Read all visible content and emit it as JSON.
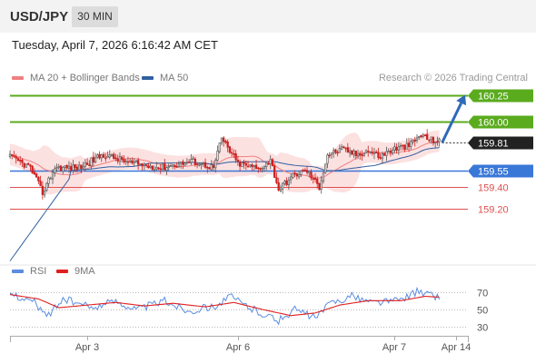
{
  "header": {
    "pair": "USD/JPY",
    "interval": "30 MIN"
  },
  "timestamp": "Tuesday, April 7, 2026 6:16:42 AM CET",
  "legend": {
    "ma20_label": "MA 20 + Bollinger Bands",
    "ma50_label": "MA 50",
    "rsi_label": "RSI",
    "rsi_ma_label": "9MA"
  },
  "credit": "Research © 2026 Trading Central",
  "colors": {
    "bull": "#e8e8e8",
    "bear": "#cc2020",
    "ma20": "#f08080",
    "bollinger_fill": "#fbdcdc",
    "ma50": "#3060a0",
    "resistance": "#5aab1e",
    "support_blue": "#3a78d8",
    "support_red": "#e05050",
    "current": "#222222",
    "rsi": "#5b8de0",
    "rsi_ma": "#e02020",
    "arrow": "#2e6ab8"
  },
  "chart_data": [
    {
      "type": "candlestick",
      "x_ticks": [
        "Apr 3",
        "Apr 6",
        "Apr 7",
        "Apr 14"
      ],
      "ylim": [
        158.7,
        160.33
      ],
      "levels": [
        {
          "label": "160.25",
          "value": 160.25,
          "role": "target"
        },
        {
          "label": "160.00",
          "value": 160.0,
          "role": "resistance"
        },
        {
          "label": "159.81",
          "value": 159.81,
          "role": "current"
        },
        {
          "label": "159.55",
          "value": 159.55,
          "role": "pivot"
        },
        {
          "label": "159.40",
          "value": 159.4,
          "role": "support"
        },
        {
          "label": "159.20",
          "value": 159.2,
          "role": "support"
        }
      ],
      "anchors": [
        [
          0,
          159.68
        ],
        [
          10,
          159.58
        ],
        [
          16,
          159.35
        ],
        [
          22,
          159.58
        ],
        [
          34,
          159.58
        ],
        [
          46,
          159.7
        ],
        [
          60,
          159.62
        ],
        [
          74,
          159.58
        ],
        [
          90,
          159.64
        ],
        [
          100,
          159.58
        ],
        [
          104,
          159.85
        ],
        [
          112,
          159.62
        ],
        [
          122,
          159.57
        ],
        [
          128,
          159.65
        ],
        [
          132,
          159.38
        ],
        [
          140,
          159.52
        ],
        [
          146,
          159.55
        ],
        [
          152,
          159.4
        ],
        [
          156,
          159.7
        ],
        [
          164,
          159.75
        ],
        [
          170,
          159.7
        ],
        [
          176,
          159.74
        ],
        [
          182,
          159.68
        ],
        [
          188,
          159.75
        ],
        [
          196,
          159.78
        ],
        [
          202,
          159.88
        ],
        [
          206,
          159.84
        ],
        [
          211,
          159.82
        ]
      ]
    },
    {
      "type": "line",
      "title": "RSI",
      "ylim": [
        20,
        80
      ],
      "y_ticks": [
        70,
        50,
        30
      ],
      "series": [
        {
          "name": "RSI",
          "anchors": [
            [
              0,
              69
            ],
            [
              12,
              58
            ],
            [
              18,
              42
            ],
            [
              26,
              62
            ],
            [
              40,
              52
            ],
            [
              52,
              60
            ],
            [
              62,
              50
            ],
            [
              76,
              60
            ],
            [
              88,
              48
            ],
            [
              102,
              55
            ],
            [
              108,
              65
            ],
            [
              118,
              52
            ],
            [
              132,
              37
            ],
            [
              140,
              50
            ],
            [
              150,
              40
            ],
            [
              158,
              58
            ],
            [
              168,
              65
            ],
            [
              178,
              58
            ],
            [
              190,
              60
            ],
            [
              200,
              70
            ],
            [
              206,
              67
            ],
            [
              211,
              64
            ]
          ]
        },
        {
          "name": "9MA",
          "anchors": [
            [
              0,
              67
            ],
            [
              14,
              62
            ],
            [
              24,
              52
            ],
            [
              38,
              55
            ],
            [
              52,
              58
            ],
            [
              66,
              54
            ],
            [
              80,
              57
            ],
            [
              96,
              53
            ],
            [
              110,
              58
            ],
            [
              124,
              50
            ],
            [
              138,
              43
            ],
            [
              150,
              46
            ],
            [
              162,
              55
            ],
            [
              176,
              60
            ],
            [
              192,
              60
            ],
            [
              204,
              65
            ],
            [
              211,
              64
            ]
          ]
        }
      ]
    }
  ]
}
